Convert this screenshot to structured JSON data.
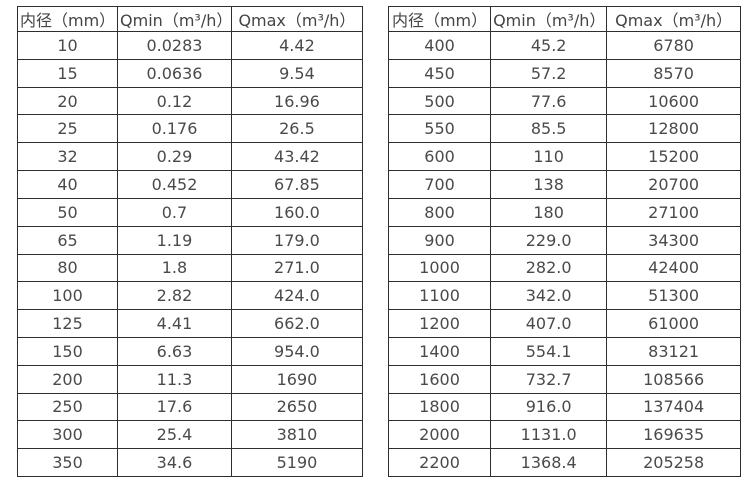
{
  "page": {
    "background": "#ffffff",
    "border_color": "#2e2e2e",
    "text_color": "#4a4a4a"
  },
  "tables": [
    {
      "name": "flow-range-table-small-diameter",
      "headers": [
        "内径（mm）",
        "Qmin（m³/h）",
        "Qmax（m³/h）"
      ],
      "rows": [
        [
          "10",
          "0.0283",
          "4.42"
        ],
        [
          "15",
          "0.0636",
          "9.54"
        ],
        [
          "20",
          "0.12",
          "16.96"
        ],
        [
          "25",
          "0.176",
          "26.5"
        ],
        [
          "32",
          "0.29",
          "43.42"
        ],
        [
          "40",
          "0.452",
          "67.85"
        ],
        [
          "50",
          "0.7",
          "160.0"
        ],
        [
          "65",
          "1.19",
          "179.0"
        ],
        [
          "80",
          "1.8",
          "271.0"
        ],
        [
          "100",
          "2.82",
          "424.0"
        ],
        [
          "125",
          "4.41",
          "662.0"
        ],
        [
          "150",
          "6.63",
          "954.0"
        ],
        [
          "200",
          "11.3",
          "1690"
        ],
        [
          "250",
          "17.6",
          "2650"
        ],
        [
          "300",
          "25.4",
          "3810"
        ],
        [
          "350",
          "34.6",
          "5190"
        ]
      ]
    },
    {
      "name": "flow-range-table-large-diameter",
      "headers": [
        "内径（mm）",
        "Qmin（m³/h）",
        "Qmax（m³/h）"
      ],
      "rows": [
        [
          "400",
          "45.2",
          "6780"
        ],
        [
          "450",
          "57.2",
          "8570"
        ],
        [
          "500",
          "77.6",
          "10600"
        ],
        [
          "550",
          "85.5",
          "12800"
        ],
        [
          "600",
          "110",
          "15200"
        ],
        [
          "700",
          "138",
          "20700"
        ],
        [
          "800",
          "180",
          "27100"
        ],
        [
          "900",
          "229.0",
          "34300"
        ],
        [
          "1000",
          "282.0",
          "42400"
        ],
        [
          "1100",
          "342.0",
          "51300"
        ],
        [
          "1200",
          "407.0",
          "61000"
        ],
        [
          "1400",
          "554.1",
          "83121"
        ],
        [
          "1600",
          "732.7",
          "108566"
        ],
        [
          "1800",
          "916.0",
          "137404"
        ],
        [
          "2000",
          "1131.0",
          "169635"
        ],
        [
          "2200",
          "1368.4",
          "205258"
        ]
      ]
    }
  ]
}
